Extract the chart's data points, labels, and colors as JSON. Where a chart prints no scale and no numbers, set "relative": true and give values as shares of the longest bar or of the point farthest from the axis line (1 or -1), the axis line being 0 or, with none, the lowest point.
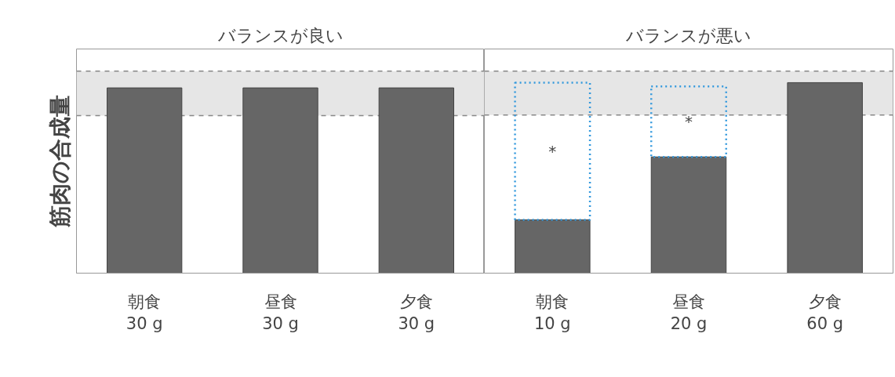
{
  "chart_data": [
    {
      "type": "bar",
      "title": "バランスが良い",
      "ylabel": "筋肉の合成量",
      "relative": true,
      "categories": [
        "朝食\n30 g",
        "昼食\n30 g",
        "夕食\n30 g"
      ],
      "series": [
        {
          "color": "#666666",
          "values": [
            1,
            1,
            1
          ]
        }
      ],
      "bands": [
        {
          "axis": "y",
          "from": 0.85,
          "to": 1.09,
          "color": "#e6e6e6"
        }
      ],
      "ref_lines": [
        {
          "axis": "y",
          "value": 0.85,
          "color": "#888888",
          "line_style": "dashed"
        },
        {
          "axis": "y",
          "value": 1.09,
          "color": "#888888",
          "line_style": "dashed"
        }
      ],
      "grid": false
    },
    {
      "type": "bar",
      "title": "バランスが悪い",
      "relative": true,
      "stacked": true,
      "categories": [
        "朝食\n10 g",
        "昼食\n20 g",
        "夕食\n60 g"
      ],
      "series": [
        {
          "color": "#666666",
          "values": [
            0.28,
            0.61,
            1
          ]
        },
        {
          "color": "#3399dd",
          "values": [
            0.72,
            0.37,
            null
          ],
          "line_style": "dotted"
        }
      ],
      "bands": [
        {
          "axis": "y",
          "from": 0.83,
          "to": 1.06,
          "color": "#e6e6e6"
        }
      ],
      "ref_lines": [
        {
          "axis": "y",
          "value": 0.83,
          "color": "#888888",
          "line_style": "dashed"
        },
        {
          "axis": "y",
          "value": 1.06,
          "color": "#888888",
          "line_style": "dashed"
        }
      ],
      "annotations": [
        "*",
        "*"
      ],
      "grid": false
    }
  ]
}
